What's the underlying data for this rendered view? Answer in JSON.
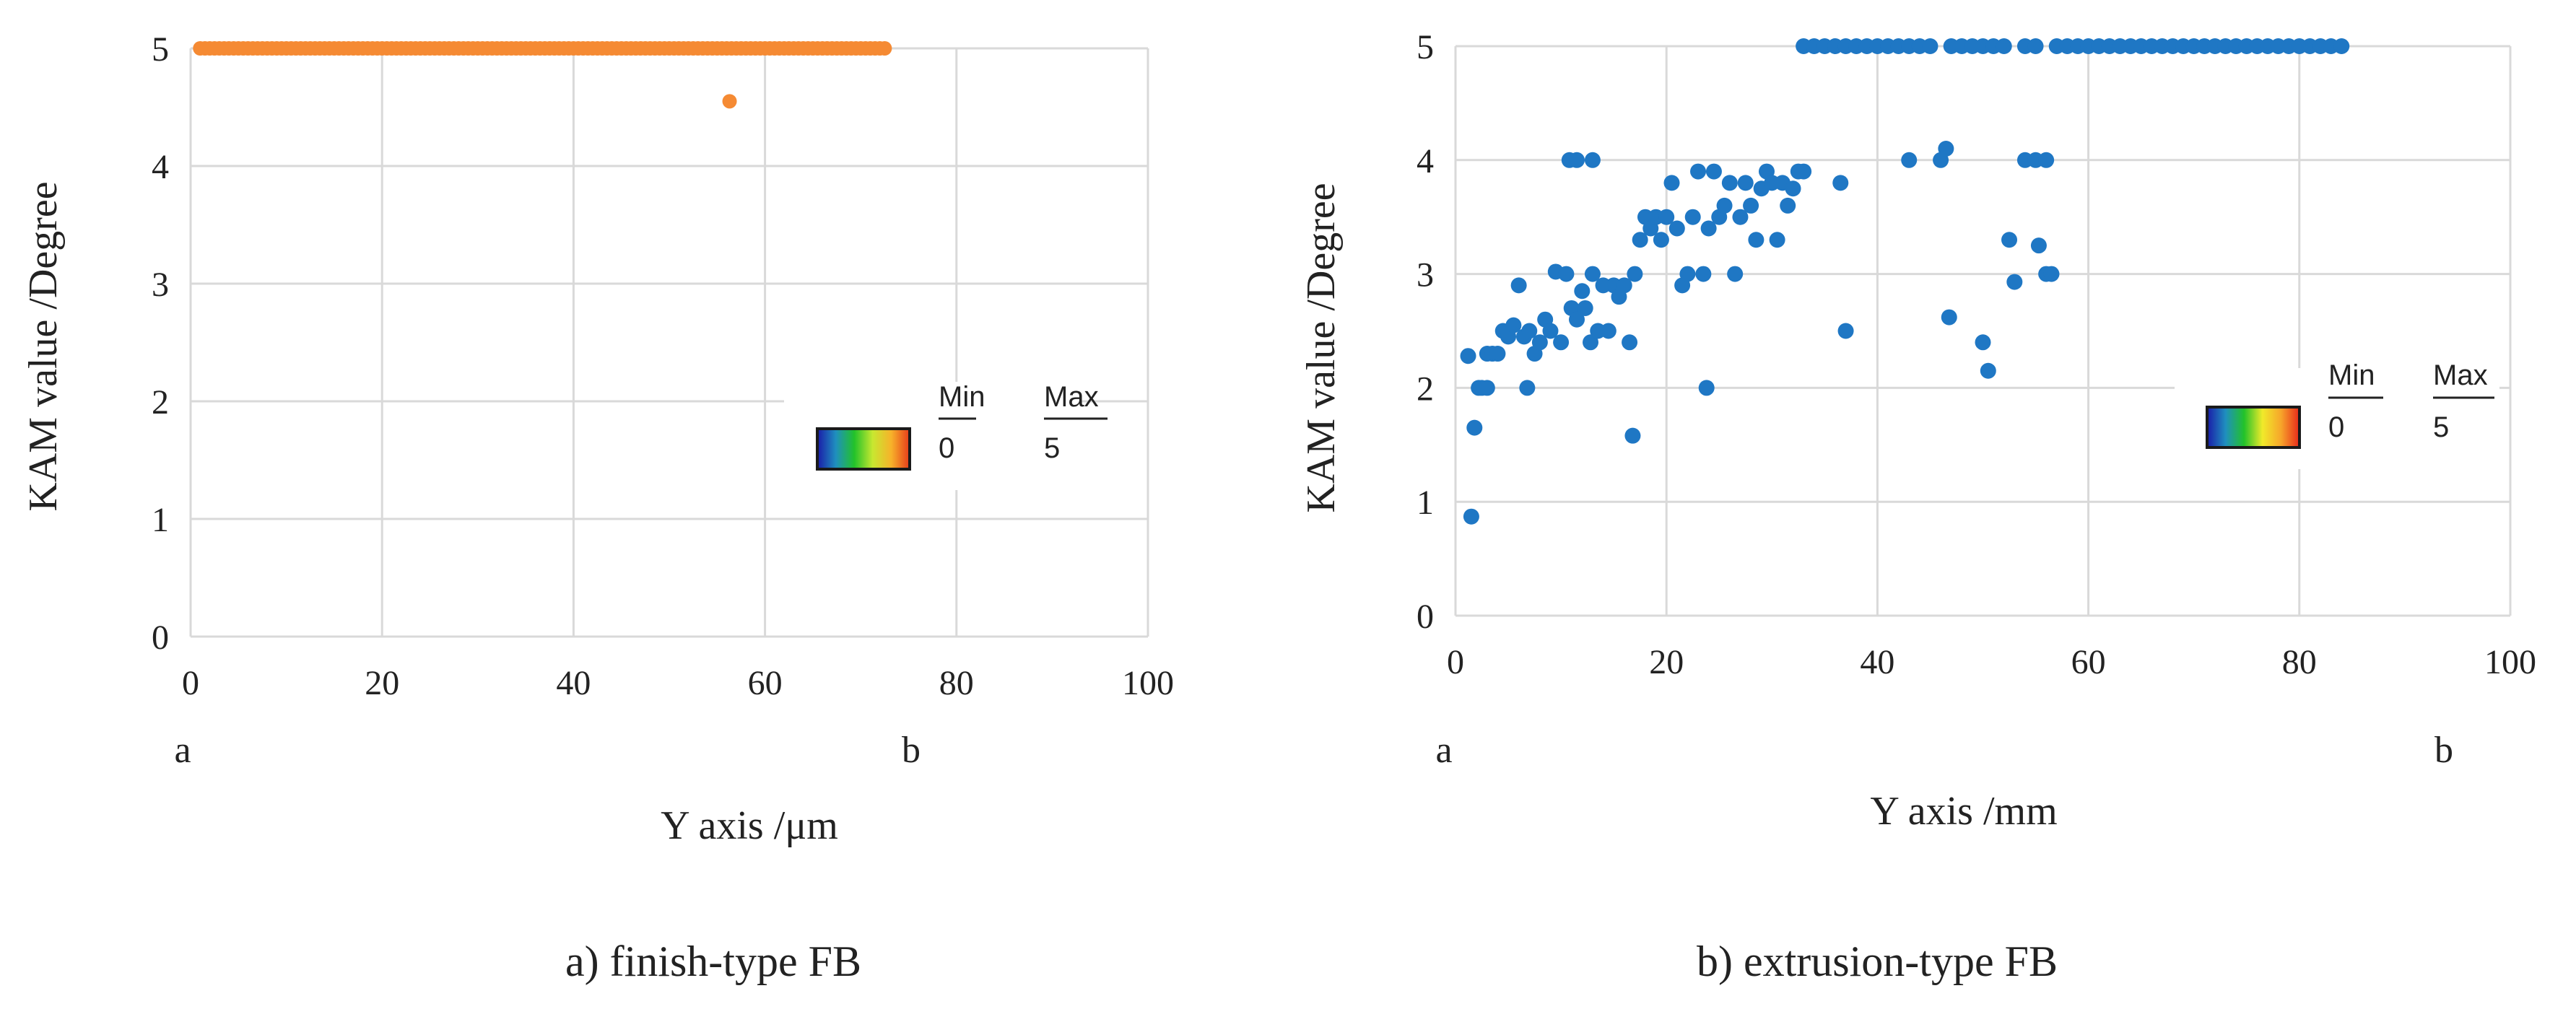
{
  "chart_data": [
    {
      "type": "scatter",
      "panel_label": "a",
      "caption": "a) finish-type FB",
      "xlabel": "Y axis /μm",
      "ylabel": "KAM value /Degree",
      "xlim": [
        0,
        100
      ],
      "ylim": [
        0,
        5
      ],
      "x_ticks": [
        "0",
        "20",
        "40",
        "60",
        "80",
        "100"
      ],
      "y_ticks": [
        "0",
        "1",
        "2",
        "3",
        "4",
        "5"
      ],
      "grid": true,
      "start_marker": "a",
      "end_marker": "b",
      "marker_color": "#F58A33",
      "legend": {
        "min_label": "Min",
        "max_label": "Max",
        "min_value": "0",
        "max_value": "5"
      },
      "series": [
        {
          "name": "KAM",
          "x": [
            1.0,
            1.5,
            2.0,
            2.5,
            3.0,
            3.5,
            4.0,
            4.5,
            5.0,
            5.5,
            6.0,
            6.5,
            7.0,
            7.5,
            8.0,
            8.5,
            9.0,
            9.5,
            10.0,
            10.5,
            11.0,
            11.5,
            12.0,
            12.5,
            13.0,
            13.5,
            14.0,
            14.5,
            15.0,
            15.5,
            16.0,
            16.5,
            17.0,
            17.5,
            18.0,
            18.5,
            19.0,
            19.5,
            20.0,
            20.5,
            21.0,
            21.5,
            22.0,
            22.5,
            23.0,
            23.5,
            24.0,
            24.5,
            25.0,
            25.5,
            26.0,
            26.5,
            27.0,
            27.5,
            28.0,
            28.5,
            29.0,
            29.5,
            30.0,
            30.5,
            31.0,
            31.5,
            32.0,
            32.5,
            33.0,
            33.5,
            34.0,
            34.5,
            35.0,
            35.5,
            36.0,
            36.5,
            37.0,
            37.5,
            38.0,
            38.5,
            39.0,
            39.5,
            40.0,
            40.5,
            41.0,
            41.5,
            42.0,
            42.5,
            43.0,
            43.5,
            44.0,
            44.5,
            45.0,
            45.5,
            46.0,
            46.5,
            47.0,
            47.5,
            48.0,
            48.5,
            49.0,
            49.5,
            50.0,
            50.5,
            51.0,
            51.5,
            52.0,
            52.5,
            53.0,
            53.5,
            54.0,
            54.5,
            55.0,
            55.5,
            56.0,
            56.5,
            57.0,
            57.5,
            58.0,
            58.5,
            59.0,
            59.5,
            60.0,
            60.5,
            61.0,
            61.5,
            62.0,
            62.5,
            63.0,
            63.5,
            64.0,
            64.5,
            65.0,
            65.5,
            66.0,
            66.5,
            67.0,
            67.5,
            68.0,
            68.5,
            69.0,
            69.5,
            70.0,
            70.5,
            71.0,
            71.5,
            72.0,
            72.5,
            56.3
          ],
          "y": [
            5,
            5,
            5,
            5,
            5,
            5,
            5,
            5,
            5,
            5,
            5,
            5,
            5,
            5,
            5,
            5,
            5,
            5,
            5,
            5,
            5,
            5,
            5,
            5,
            5,
            5,
            5,
            5,
            5,
            5,
            5,
            5,
            5,
            5,
            5,
            5,
            5,
            5,
            5,
            5,
            5,
            5,
            5,
            5,
            5,
            5,
            5,
            5,
            5,
            5,
            5,
            5,
            5,
            5,
            5,
            5,
            5,
            5,
            5,
            5,
            5,
            5,
            5,
            5,
            5,
            5,
            5,
            5,
            5,
            5,
            5,
            5,
            5,
            5,
            5,
            5,
            5,
            5,
            5,
            5,
            5,
            5,
            5,
            5,
            5,
            5,
            5,
            5,
            5,
            5,
            5,
            5,
            5,
            5,
            5,
            5,
            5,
            5,
            5,
            5,
            5,
            5,
            5,
            5,
            5,
            5,
            5,
            5,
            5,
            5,
            5,
            5,
            5,
            5,
            5,
            5,
            5,
            5,
            5,
            5,
            5,
            5,
            5,
            5,
            5,
            5,
            5,
            5,
            5,
            5,
            5,
            5,
            5,
            5,
            5,
            5,
            5,
            5,
            5,
            5,
            5,
            5,
            5,
            5,
            4.55
          ]
        }
      ]
    },
    {
      "type": "scatter",
      "panel_label": "b",
      "caption": "b) extrusion-type FB",
      "xlabel": "Y axis /mm",
      "ylabel": "KAM value /Degree",
      "xlim": [
        0,
        100
      ],
      "ylim": [
        0,
        5
      ],
      "x_ticks": [
        "0",
        "20",
        "40",
        "60",
        "80",
        "100"
      ],
      "y_ticks": [
        "0",
        "1",
        "2",
        "3",
        "4",
        "5"
      ],
      "grid": true,
      "start_marker": "a",
      "end_marker": "b",
      "marker_color": "#1F77C4",
      "legend": {
        "min_label": "Min",
        "max_label": "Max",
        "min_value": "0",
        "max_value": "5"
      },
      "series": [
        {
          "name": "KAM",
          "x": [
            1.2,
            1.5,
            1.8,
            2.2,
            2.5,
            3.0,
            3.0,
            3.5,
            4.0,
            4.5,
            5.0,
            5.5,
            6.0,
            6.5,
            6.8,
            7.0,
            7.5,
            8.0,
            8.5,
            9.0,
            9.5,
            10.0,
            10.5,
            11.0,
            11.5,
            12.0,
            12.3,
            12.8,
            13.0,
            13.5,
            14.0,
            14.5,
            15.0,
            15.5,
            16.0,
            16.5,
            16.8,
            17.0,
            17.5,
            18.0,
            18.5,
            19.0,
            19.5,
            20.0,
            20.5,
            21.0,
            21.5,
            22.0,
            22.5,
            23.0,
            23.5,
            23.8,
            24.0,
            24.5,
            25.0,
            25.5,
            26.0,
            26.5,
            27.0,
            27.5,
            28.0,
            28.5,
            29.0,
            29.5,
            30.0,
            30.5,
            31.0,
            31.5,
            32.0,
            32.5,
            33.0,
            36.5,
            37.0,
            43.0,
            46.0,
            46.5,
            46.8,
            50.0,
            50.5,
            52.5,
            53.0,
            54.0,
            55.0,
            55.3,
            56.0,
            56.0,
            56.5,
            10.8,
            11.5,
            13.0,
            33.0,
            34.0,
            35.0,
            36.0,
            37.0,
            38.0,
            39.0,
            40.0,
            41.0,
            42.0,
            43.0,
            44.0,
            45.0,
            47.0,
            48.0,
            49.0,
            50.0,
            51.0,
            52.0,
            54.0,
            55.0,
            57.0,
            58.0,
            59.0,
            60.0,
            61.0,
            62.0,
            63.0,
            64.0,
            65.0,
            66.0,
            67.0,
            68.0,
            69.0,
            70.0,
            71.0,
            72.0,
            73.0,
            74.0,
            75.0,
            76.0,
            77.0,
            78.0,
            79.0,
            80.0,
            81.0,
            82.0,
            83.0,
            84.0
          ],
          "y": [
            2.28,
            0.87,
            1.65,
            2.0,
            2.0,
            2.3,
            2.0,
            2.3,
            2.3,
            2.5,
            2.45,
            2.55,
            2.9,
            2.45,
            2.0,
            2.5,
            2.3,
            2.4,
            2.6,
            2.5,
            3.02,
            2.4,
            3.0,
            2.7,
            2.6,
            2.85,
            2.7,
            2.4,
            3.0,
            2.5,
            2.9,
            2.5,
            2.9,
            2.8,
            2.9,
            2.4,
            1.58,
            3.0,
            3.3,
            3.5,
            3.4,
            3.5,
            3.3,
            3.5,
            3.8,
            3.4,
            2.9,
            3.0,
            3.5,
            3.9,
            3.0,
            2.0,
            3.4,
            3.9,
            3.5,
            3.6,
            3.8,
            3.0,
            3.5,
            3.8,
            3.6,
            3.3,
            3.75,
            3.9,
            3.8,
            3.3,
            3.8,
            3.6,
            3.75,
            3.9,
            3.9,
            3.8,
            2.5,
            4.0,
            4.0,
            4.1,
            2.62,
            2.4,
            2.15,
            3.3,
            2.93,
            4.0,
            4.0,
            3.25,
            3.0,
            4.0,
            3.0,
            4.0,
            4.0,
            4.0,
            5,
            5,
            5,
            5,
            5,
            5,
            5,
            5,
            5,
            5,
            5,
            5,
            5,
            5,
            5,
            5,
            5,
            5,
            5,
            5,
            5,
            5,
            5,
            5,
            5,
            5,
            5,
            5,
            5,
            5,
            5,
            5,
            5,
            5,
            5,
            5,
            5,
            5,
            5,
            5,
            5,
            5,
            5,
            5,
            5,
            5,
            5,
            5,
            5
          ]
        }
      ]
    }
  ]
}
